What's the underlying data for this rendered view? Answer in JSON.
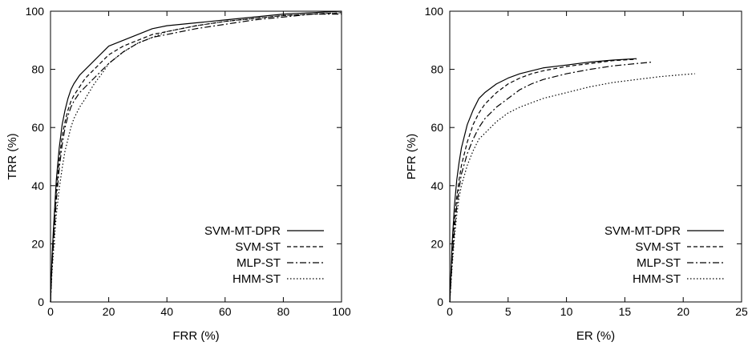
{
  "chart_data": [
    {
      "type": "line",
      "title": "",
      "xlabel": "FRR (%)",
      "ylabel": "TRR (%)",
      "xlim": [
        0,
        100
      ],
      "ylim": [
        0,
        100
      ],
      "xticks": [
        0,
        20,
        40,
        60,
        80,
        100
      ],
      "yticks": [
        0,
        20,
        40,
        60,
        80,
        100
      ],
      "grid": false,
      "legend_position": "bottom-right",
      "series": [
        {
          "name": "SVM-MT-DPR",
          "style": "solid",
          "x": [
            0,
            0.5,
            1,
            2,
            3,
            4,
            5,
            6,
            7,
            8,
            10,
            12,
            15,
            18,
            20,
            25,
            30,
            35,
            40,
            50,
            60,
            70,
            80,
            90,
            100
          ],
          "y": [
            0,
            15,
            25,
            42,
            53,
            61,
            66,
            70,
            73,
            75,
            78,
            80,
            83,
            86,
            88,
            90,
            92,
            94,
            95,
            96,
            97,
            98,
            99,
            99.5,
            100
          ]
        },
        {
          "name": "SVM-ST",
          "style": "dashed",
          "x": [
            0,
            0.5,
            1,
            2,
            3,
            4,
            5,
            6,
            7,
            8,
            10,
            12,
            15,
            18,
            20,
            25,
            30,
            35,
            40,
            50,
            60,
            70,
            80,
            90,
            100
          ],
          "y": [
            0,
            13,
            22,
            38,
            49,
            57,
            62,
            66,
            69,
            71,
            74,
            77,
            80,
            83,
            85,
            88,
            90,
            92,
            93,
            95,
            96.5,
            97.5,
            98.5,
            99,
            99.5
          ]
        },
        {
          "name": "MLP-ST",
          "style": "dashdot",
          "x": [
            0,
            0.5,
            1,
            2,
            3,
            4,
            5,
            6,
            7,
            8,
            10,
            12,
            15,
            18,
            20,
            25,
            30,
            35,
            40,
            50,
            60,
            70,
            80,
            90,
            100
          ],
          "y": [
            0,
            12,
            20,
            35,
            46,
            54,
            60,
            64,
            67,
            69,
            72,
            74,
            77,
            80,
            82,
            86,
            89,
            91,
            92,
            94,
            95.5,
            97,
            98,
            99,
            99
          ]
        },
        {
          "name": "HMM-ST",
          "style": "dotted",
          "x": [
            0,
            0.5,
            1,
            2,
            3,
            4,
            5,
            6,
            7,
            8,
            10,
            12,
            15,
            18,
            20,
            25,
            30,
            35,
            40,
            50,
            60,
            70,
            80,
            90,
            100
          ],
          "y": [
            0,
            10,
            17,
            30,
            39,
            46,
            52,
            56,
            60,
            63,
            67,
            70,
            75,
            79,
            82,
            86,
            89,
            91,
            93,
            95,
            96.5,
            97.5,
            98.5,
            99,
            99.5
          ]
        }
      ]
    },
    {
      "type": "line",
      "title": "",
      "xlabel": "ER (%)",
      "ylabel": "PFR (%)",
      "xlim": [
        0,
        25
      ],
      "ylim": [
        0,
        100
      ],
      "xticks": [
        0,
        5,
        10,
        15,
        20,
        25
      ],
      "yticks": [
        0,
        20,
        40,
        60,
        80,
        100
      ],
      "grid": false,
      "legend_position": "bottom-right",
      "series": [
        {
          "name": "SVM-MT-DPR",
          "style": "solid",
          "x": [
            0,
            0.1,
            0.2,
            0.4,
            0.6,
            0.8,
            1,
            1.5,
            2,
            2.5,
            3,
            4,
            5,
            6,
            7,
            8,
            10,
            12,
            14,
            16
          ],
          "y": [
            0,
            10,
            20,
            33,
            42,
            48,
            53,
            61,
            66,
            70,
            72,
            75,
            77,
            78.5,
            79.5,
            80.5,
            81.5,
            82.5,
            83.2,
            83.7
          ]
        },
        {
          "name": "SVM-ST",
          "style": "dashed",
          "x": [
            0,
            0.1,
            0.2,
            0.4,
            0.6,
            0.8,
            1,
            1.5,
            2,
            2.5,
            3,
            4,
            5,
            6,
            7,
            8,
            10,
            12,
            14,
            16
          ],
          "y": [
            0,
            8,
            16,
            28,
            36,
            42,
            47,
            55,
            61,
            65,
            68,
            72,
            75,
            77,
            78.5,
            79.5,
            81,
            82,
            83,
            83.5
          ]
        },
        {
          "name": "MLP-ST",
          "style": "dashdot",
          "x": [
            0,
            0.1,
            0.2,
            0.4,
            0.6,
            0.8,
            1,
            1.5,
            2,
            2.5,
            3,
            4,
            5,
            6,
            7,
            8,
            10,
            12,
            14,
            16,
            17.3
          ],
          "y": [
            0,
            7,
            14,
            25,
            33,
            39,
            44,
            51,
            56,
            60,
            63,
            67,
            70,
            73,
            75,
            76.5,
            78.5,
            80,
            81.2,
            82,
            82.5
          ]
        },
        {
          "name": "HMM-ST",
          "style": "dotted",
          "x": [
            0,
            0.1,
            0.2,
            0.4,
            0.6,
            0.8,
            1,
            1.5,
            2,
            2.5,
            3,
            4,
            5,
            6,
            7,
            8,
            10,
            12,
            14,
            16,
            18,
            20,
            21
          ],
          "y": [
            0,
            6,
            12,
            22,
            30,
            36,
            40,
            47,
            52,
            56,
            58,
            62,
            65,
            67,
            68.5,
            70,
            72,
            74,
            75.5,
            76.5,
            77.5,
            78.2,
            78.5
          ]
        }
      ]
    }
  ]
}
